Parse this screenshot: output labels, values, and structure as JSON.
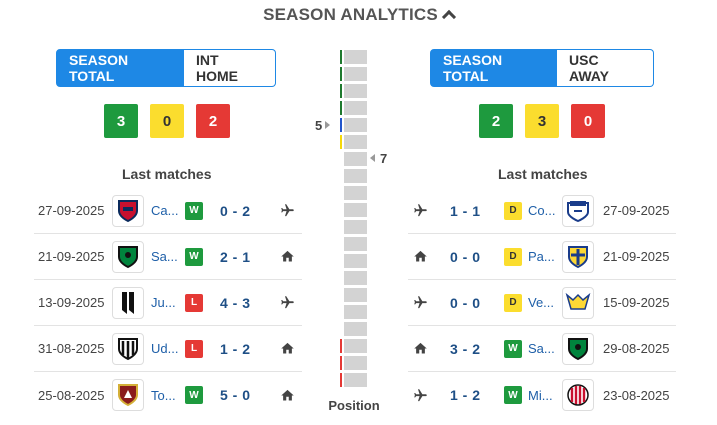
{
  "header": {
    "title": "SEASON ANALYTICS",
    "toggle_icon": "chevron-up-icon"
  },
  "colors": {
    "accent": "#1e88e5",
    "win": "#1e9a3e",
    "draw": "#fbdd2e",
    "loss": "#e53935"
  },
  "home": {
    "tab_active": "SEASON TOTAL",
    "tab_inactive": "INT HOME",
    "summary": {
      "wins": "3",
      "draws": "0",
      "losses": "2"
    },
    "last_matches_title": "Last matches",
    "matches": [
      {
        "date": "27-09-2025",
        "team": "Ca...",
        "result": "W",
        "score": "0 - 2",
        "venue": "away",
        "crest": "cagliari-crest"
      },
      {
        "date": "21-09-2025",
        "team": "Sa...",
        "result": "W",
        "score": "2 - 1",
        "venue": "home",
        "crest": "sassuolo-crest"
      },
      {
        "date": "13-09-2025",
        "team": "Ju...",
        "result": "L",
        "score": "4 - 3",
        "venue": "away",
        "crest": "juventus-crest"
      },
      {
        "date": "31-08-2025",
        "team": "Ud...",
        "result": "L",
        "score": "1 - 2",
        "venue": "home",
        "crest": "udinese-crest"
      },
      {
        "date": "25-08-2025",
        "team": "To...",
        "result": "W",
        "score": "5 - 0",
        "venue": "home",
        "crest": "torino-crest"
      }
    ]
  },
  "away": {
    "tab_active": "SEASON TOTAL",
    "tab_inactive": "USC AWAY",
    "summary": {
      "wins": "2",
      "draws": "3",
      "losses": "0"
    },
    "last_matches_title": "Last matches",
    "matches": [
      {
        "date": "27-09-2025",
        "team": "Co...",
        "result": "D",
        "score": "1 - 1",
        "venue": "away",
        "crest": "como-crest"
      },
      {
        "date": "21-09-2025",
        "team": "Pa...",
        "result": "D",
        "score": "0 - 0",
        "venue": "home",
        "crest": "parma-crest"
      },
      {
        "date": "15-09-2025",
        "team": "Ve...",
        "result": "D",
        "score": "0 - 0",
        "venue": "away",
        "crest": "verona-crest"
      },
      {
        "date": "29-08-2025",
        "team": "Sa...",
        "result": "W",
        "score": "3 - 2",
        "venue": "home",
        "crest": "sassuolo-crest"
      },
      {
        "date": "23-08-2025",
        "team": "Mi...",
        "result": "W",
        "score": "1 - 2",
        "venue": "away",
        "crest": "milan-crest"
      }
    ]
  },
  "standings": {
    "home_position": "5",
    "away_position": "7",
    "label": "Position",
    "zone_marks": [
      "#1e7a2e",
      "#1e7a2e",
      "#1e7a2e",
      "#1e7a2e",
      "#2255cc",
      "#f5d90a",
      "",
      "",
      "",
      "",
      "",
      "",
      "",
      "",
      "",
      "",
      "",
      "#e53935",
      "#e53935",
      "#e53935"
    ]
  }
}
